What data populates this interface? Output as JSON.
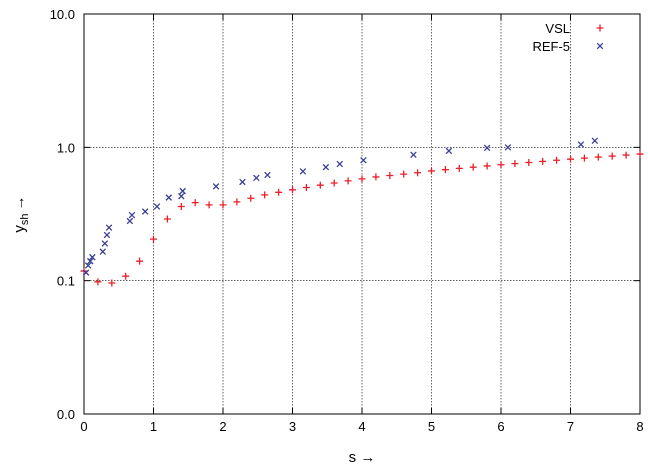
{
  "chart_data": {
    "type": "scatter",
    "title": "",
    "xlabel": "s →",
    "ylabel_main": "y",
    "ylabel_sub": "sh",
    "ylabel_arrow": "→",
    "xlim": [
      0,
      8
    ],
    "ylim": [
      0.01,
      10
    ],
    "yscale": "log",
    "grid": true,
    "legend_position": "top-right",
    "x_ticks": [
      0,
      1,
      2,
      3,
      4,
      5,
      6,
      7,
      8
    ],
    "x_tick_labels": [
      "0",
      "1",
      "2",
      "3",
      "4",
      "5",
      "6",
      "7",
      "8"
    ],
    "y_ticks": [
      0.01,
      0.1,
      1,
      10
    ],
    "y_tick_labels": [
      "0.0",
      "0.1",
      "1.0",
      "10.0"
    ],
    "series": [
      {
        "name": "VSL",
        "marker": "plus",
        "color": "#e8202a",
        "x": [
          0.0,
          0.2,
          0.4,
          0.6,
          0.8,
          1.0,
          1.2,
          1.4,
          1.6,
          1.8,
          2.0,
          2.2,
          2.4,
          2.6,
          2.8,
          3.0,
          3.2,
          3.4,
          3.6,
          3.8,
          4.0,
          4.2,
          4.4,
          4.6,
          4.8,
          5.0,
          5.2,
          5.4,
          5.6,
          5.8,
          6.0,
          6.2,
          6.4,
          6.6,
          6.8,
          7.0,
          7.2,
          7.4,
          7.6,
          7.8,
          8.0
        ],
        "y": [
          0.118,
          0.098,
          0.096,
          0.108,
          0.14,
          0.205,
          0.29,
          0.36,
          0.385,
          0.37,
          0.37,
          0.39,
          0.415,
          0.44,
          0.46,
          0.48,
          0.5,
          0.52,
          0.54,
          0.56,
          0.58,
          0.6,
          0.615,
          0.63,
          0.645,
          0.665,
          0.68,
          0.695,
          0.71,
          0.725,
          0.74,
          0.755,
          0.77,
          0.785,
          0.8,
          0.815,
          0.83,
          0.845,
          0.86,
          0.875,
          0.89
        ]
      },
      {
        "name": "REF-5",
        "marker": "cross",
        "color": "#3b3f96",
        "x": [
          0.03,
          0.06,
          0.09,
          0.12,
          0.27,
          0.3,
          0.33,
          0.36,
          0.66,
          0.69,
          0.88,
          1.05,
          1.22,
          1.4,
          1.42,
          1.9,
          2.28,
          2.48,
          2.64,
          3.15,
          3.48,
          3.68,
          4.02,
          4.74,
          5.25,
          5.8,
          6.1,
          7.15,
          7.35
        ],
        "y": [
          0.115,
          0.13,
          0.14,
          0.15,
          0.165,
          0.19,
          0.22,
          0.25,
          0.28,
          0.31,
          0.33,
          0.36,
          0.42,
          0.43,
          0.47,
          0.51,
          0.55,
          0.59,
          0.62,
          0.66,
          0.71,
          0.75,
          0.8,
          0.88,
          0.94,
          0.99,
          1.0,
          1.05,
          1.12
        ]
      }
    ]
  }
}
